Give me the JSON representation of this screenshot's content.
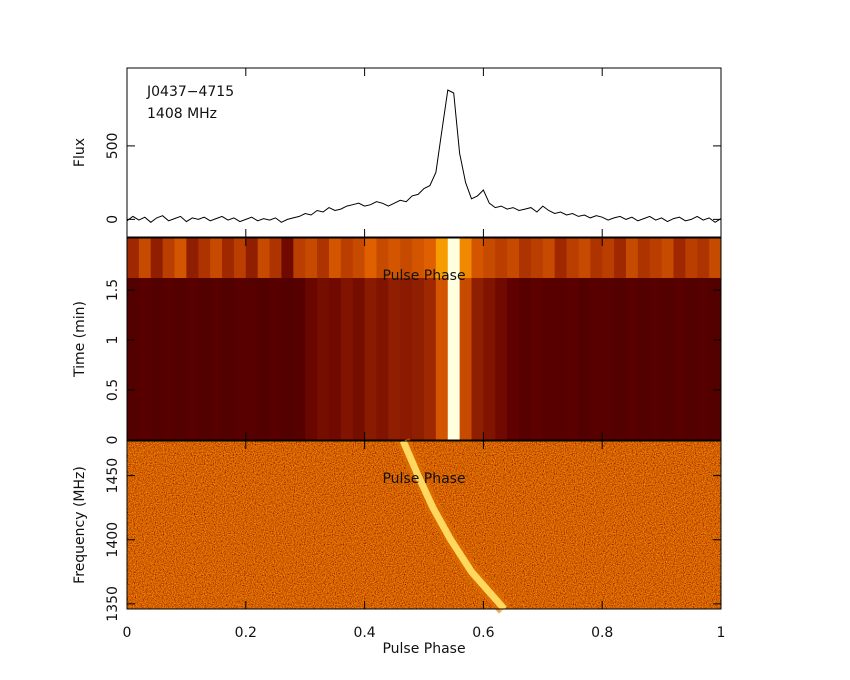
{
  "chart_data": [
    {
      "type": "line",
      "ylabel": "Flux",
      "annotations": [
        "J0437−4715",
        "1408 MHz"
      ],
      "color": "#000000",
      "xlim": [
        0,
        1
      ],
      "ylim": [
        -120,
        1030
      ],
      "yticks": [
        0,
        500
      ],
      "x": [
        0,
        0.01,
        0.02,
        0.03,
        0.04,
        0.05,
        0.06,
        0.07,
        0.08,
        0.09,
        0.1,
        0.11,
        0.12,
        0.13,
        0.14,
        0.15,
        0.16,
        0.17,
        0.18,
        0.19,
        0.2,
        0.21,
        0.22,
        0.23,
        0.24,
        0.25,
        0.26,
        0.27,
        0.28,
        0.29,
        0.3,
        0.31,
        0.32,
        0.33,
        0.34,
        0.35,
        0.36,
        0.37,
        0.38,
        0.39,
        0.4,
        0.41,
        0.42,
        0.43,
        0.44,
        0.45,
        0.46,
        0.47,
        0.48,
        0.49,
        0.5,
        0.51,
        0.52,
        0.53,
        0.54,
        0.55,
        0.56,
        0.57,
        0.58,
        0.59,
        0.6,
        0.61,
        0.62,
        0.63,
        0.64,
        0.65,
        0.66,
        0.67,
        0.68,
        0.69,
        0.7,
        0.71,
        0.72,
        0.73,
        0.74,
        0.75,
        0.76,
        0.77,
        0.78,
        0.79,
        0.8,
        0.81,
        0.82,
        0.83,
        0.84,
        0.85,
        0.86,
        0.87,
        0.88,
        0.89,
        0.9,
        0.91,
        0.92,
        0.93,
        0.94,
        0.95,
        0.96,
        0.97,
        0.98,
        0.99,
        1
      ],
      "values": [
        -10,
        20,
        -5,
        15,
        -20,
        10,
        25,
        -10,
        5,
        20,
        -15,
        10,
        0,
        15,
        -10,
        5,
        20,
        -5,
        10,
        -15,
        0,
        15,
        -10,
        5,
        -5,
        10,
        -20,
        0,
        10,
        20,
        40,
        30,
        60,
        50,
        80,
        60,
        70,
        90,
        100,
        110,
        90,
        100,
        120,
        110,
        90,
        110,
        130,
        120,
        160,
        170,
        210,
        230,
        320,
        600,
        880,
        860,
        450,
        250,
        140,
        160,
        200,
        110,
        80,
        90,
        70,
        80,
        60,
        70,
        80,
        50,
        90,
        60,
        40,
        50,
        30,
        40,
        20,
        30,
        10,
        25,
        15,
        -5,
        10,
        20,
        0,
        15,
        -10,
        5,
        20,
        -5,
        10,
        -15,
        5,
        15,
        -10,
        0,
        20,
        -5,
        10,
        -20,
        5
      ]
    },
    {
      "type": "heatmap",
      "ylabel": "Time (min)",
      "xlabel": "Pulse Phase",
      "xlim": [
        0,
        1
      ],
      "ylim": [
        0,
        2.02
      ],
      "yticks": [
        0,
        0.5,
        1,
        1.5
      ],
      "rows": [
        {
          "y": [
            0,
            1.62
          ],
          "values": [
            0.1,
            0.12,
            0.1,
            0.11,
            0.1,
            0.12,
            0.1,
            0.11,
            0.1,
            0.12,
            0.11,
            0.1,
            0.12,
            0.1,
            0.11,
            0.18,
            0.22,
            0.2,
            0.25,
            0.22,
            0.28,
            0.25,
            0.3,
            0.28,
            0.3,
            0.35,
            0.55,
            1.0,
            0.5,
            0.3,
            0.25,
            0.2,
            0.15,
            0.12,
            0.14,
            0.12,
            0.11,
            0.13,
            0.1,
            0.12,
            0.11,
            0.1,
            0.12,
            0.1,
            0.11,
            0.1,
            0.12,
            0.1,
            0.11,
            0.1
          ]
        },
        {
          "y": [
            1.62,
            2.02
          ],
          "values": [
            0.35,
            0.5,
            0.3,
            0.45,
            0.55,
            0.3,
            0.4,
            0.5,
            0.35,
            0.45,
            0.3,
            0.5,
            0.4,
            0.2,
            0.45,
            0.5,
            0.4,
            0.55,
            0.45,
            0.5,
            0.6,
            0.5,
            0.55,
            0.5,
            0.55,
            0.6,
            0.75,
            1.0,
            0.7,
            0.55,
            0.5,
            0.45,
            0.5,
            0.4,
            0.45,
            0.5,
            0.35,
            0.45,
            0.5,
            0.4,
            0.45,
            0.35,
            0.5,
            0.4,
            0.45,
            0.5,
            0.35,
            0.45,
            0.4,
            0.5
          ]
        }
      ]
    },
    {
      "type": "sweep",
      "ylabel": "Frequency (MHz)",
      "xlabel": "Pulse Phase",
      "annotation": "Pulse Phase",
      "xlim": [
        0,
        1
      ],
      "xticks": [
        0,
        0.2,
        0.4,
        0.6,
        0.8,
        1
      ],
      "ylim": [
        1346,
        1477
      ],
      "yticks": [
        1350,
        1400,
        1450
      ],
      "x": [
        0.465,
        0.49,
        0.515,
        0.545,
        0.58,
        0.635
      ],
      "y": [
        1477,
        1450,
        1425,
        1400,
        1375,
        1346
      ],
      "color": "#ffd860"
    }
  ]
}
